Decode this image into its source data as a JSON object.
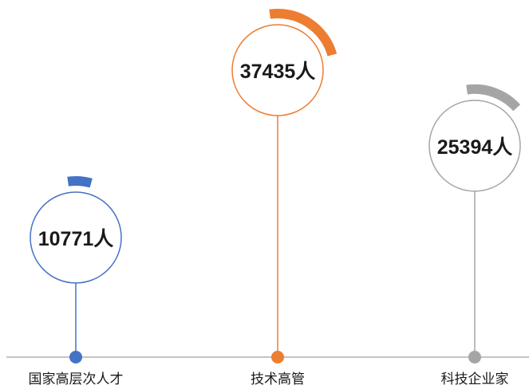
{
  "chart_data": {
    "type": "bar",
    "categories": [
      "国家高层次人才",
      "技术高管",
      "科技企业家"
    ],
    "values": [
      10771,
      37435,
      25394
    ],
    "value_labels": [
      "10771人",
      "37435人",
      "25394人"
    ],
    "colors": [
      "#4472C4",
      "#ED7D31",
      "#A5A5A5"
    ],
    "title": "",
    "xlabel": "",
    "ylabel": "",
    "legend": "none",
    "grid": false
  }
}
